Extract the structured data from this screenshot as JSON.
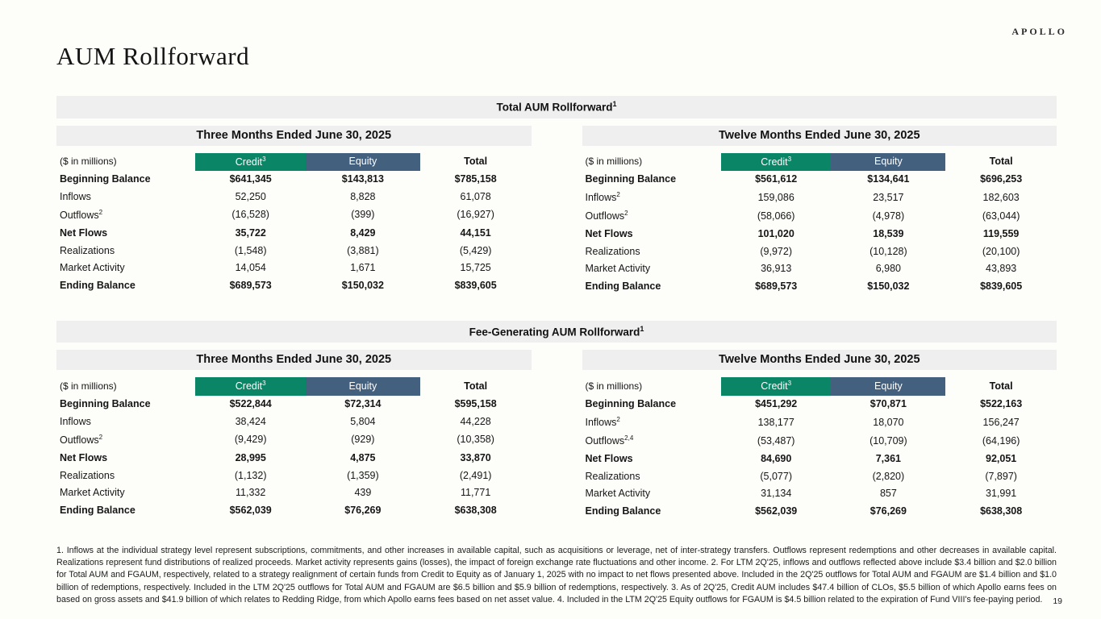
{
  "brand": "APOLLO",
  "page_title": "AUM Rollforward",
  "page_number": "19",
  "colors": {
    "credit_header": "#0a8666",
    "equity_header": "#44607f",
    "bar_background": "#efefef"
  },
  "sections": [
    {
      "title": "Total AUM Rollforward",
      "title_sup": "1",
      "tables": [
        {
          "period": "Three Months Ended June 30, 2025",
          "unit_label": "($ in millions)",
          "columns": [
            {
              "key": "credit",
              "label": "Credit",
              "sup": "3"
            },
            {
              "key": "equity",
              "label": "Equity",
              "sup": ""
            },
            {
              "key": "total",
              "label": "Total",
              "sup": ""
            }
          ],
          "rows": [
            {
              "label": "Beginning Balance",
              "sup": "",
              "bold": true,
              "values": [
                "$641,345",
                "$143,813",
                "$785,158"
              ]
            },
            {
              "label": "Inflows",
              "sup": "",
              "bold": false,
              "values": [
                "52,250",
                "8,828",
                "61,078"
              ]
            },
            {
              "label": "Outflows",
              "sup": "2",
              "bold": false,
              "values": [
                "(16,528)",
                "(399)",
                "(16,927)"
              ]
            },
            {
              "label": "Net Flows",
              "sup": "",
              "bold": true,
              "values": [
                "35,722",
                "8,429",
                "44,151"
              ]
            },
            {
              "label": "Realizations",
              "sup": "",
              "bold": false,
              "values": [
                "(1,548)",
                "(3,881)",
                "(5,429)"
              ]
            },
            {
              "label": "Market Activity",
              "sup": "",
              "bold": false,
              "values": [
                "14,054",
                "1,671",
                "15,725"
              ]
            },
            {
              "label": "Ending Balance",
              "sup": "",
              "bold": true,
              "values": [
                "$689,573",
                "$150,032",
                "$839,605"
              ]
            }
          ]
        },
        {
          "period": "Twelve Months Ended June 30, 2025",
          "unit_label": "($ in millions)",
          "columns": [
            {
              "key": "credit",
              "label": "Credit",
              "sup": "3"
            },
            {
              "key": "equity",
              "label": "Equity",
              "sup": ""
            },
            {
              "key": "total",
              "label": "Total",
              "sup": ""
            }
          ],
          "rows": [
            {
              "label": "Beginning Balance",
              "sup": "",
              "bold": true,
              "values": [
                "$561,612",
                "$134,641",
                "$696,253"
              ]
            },
            {
              "label": "Inflows",
              "sup": "2",
              "bold": false,
              "values": [
                "159,086",
                "23,517",
                "182,603"
              ]
            },
            {
              "label": "Outflows",
              "sup": "2",
              "bold": false,
              "values": [
                "(58,066)",
                "(4,978)",
                "(63,044)"
              ]
            },
            {
              "label": "Net Flows",
              "sup": "",
              "bold": true,
              "values": [
                "101,020",
                "18,539",
                "119,559"
              ]
            },
            {
              "label": "Realizations",
              "sup": "",
              "bold": false,
              "values": [
                "(9,972)",
                "(10,128)",
                "(20,100)"
              ]
            },
            {
              "label": "Market Activity",
              "sup": "",
              "bold": false,
              "values": [
                "36,913",
                "6,980",
                "43,893"
              ]
            },
            {
              "label": "Ending Balance",
              "sup": "",
              "bold": true,
              "values": [
                "$689,573",
                "$150,032",
                "$839,605"
              ]
            }
          ]
        }
      ]
    },
    {
      "title": "Fee-Generating AUM Rollforward",
      "title_sup": "1",
      "tables": [
        {
          "period": "Three Months Ended June 30, 2025",
          "unit_label": "($ in millions)",
          "columns": [
            {
              "key": "credit",
              "label": "Credit",
              "sup": "3"
            },
            {
              "key": "equity",
              "label": "Equity",
              "sup": ""
            },
            {
              "key": "total",
              "label": "Total",
              "sup": ""
            }
          ],
          "rows": [
            {
              "label": "Beginning Balance",
              "sup": "",
              "bold": true,
              "values": [
                "$522,844",
                "$72,314",
                "$595,158"
              ]
            },
            {
              "label": "Inflows",
              "sup": "",
              "bold": false,
              "values": [
                "38,424",
                "5,804",
                "44,228"
              ]
            },
            {
              "label": "Outflows",
              "sup": "2",
              "bold": false,
              "values": [
                "(9,429)",
                "(929)",
                "(10,358)"
              ]
            },
            {
              "label": "Net Flows",
              "sup": "",
              "bold": true,
              "values": [
                "28,995",
                "4,875",
                "33,870"
              ]
            },
            {
              "label": "Realizations",
              "sup": "",
              "bold": false,
              "values": [
                "(1,132)",
                "(1,359)",
                "(2,491)"
              ]
            },
            {
              "label": "Market Activity",
              "sup": "",
              "bold": false,
              "values": [
                "11,332",
                "439",
                "11,771"
              ]
            },
            {
              "label": "Ending Balance",
              "sup": "",
              "bold": true,
              "values": [
                "$562,039",
                "$76,269",
                "$638,308"
              ]
            }
          ]
        },
        {
          "period": "Twelve Months Ended June 30, 2025",
          "unit_label": "($ in millions)",
          "columns": [
            {
              "key": "credit",
              "label": "Credit",
              "sup": "3"
            },
            {
              "key": "equity",
              "label": "Equity",
              "sup": ""
            },
            {
              "key": "total",
              "label": "Total",
              "sup": ""
            }
          ],
          "rows": [
            {
              "label": "Beginning Balance",
              "sup": "",
              "bold": true,
              "values": [
                "$451,292",
                "$70,871",
                "$522,163"
              ]
            },
            {
              "label": "Inflows",
              "sup": "2",
              "bold": false,
              "values": [
                "138,177",
                "18,070",
                "156,247"
              ]
            },
            {
              "label": "Outflows",
              "sup": "2,4",
              "bold": false,
              "values": [
                "(53,487)",
                "(10,709)",
                "(64,196)"
              ]
            },
            {
              "label": "Net Flows",
              "sup": "",
              "bold": true,
              "values": [
                "84,690",
                "7,361",
                "92,051"
              ]
            },
            {
              "label": "Realizations",
              "sup": "",
              "bold": false,
              "values": [
                "(5,077)",
                "(2,820)",
                "(7,897)"
              ]
            },
            {
              "label": "Market Activity",
              "sup": "",
              "bold": false,
              "values": [
                "31,134",
                "857",
                "31,991"
              ]
            },
            {
              "label": "Ending Balance",
              "sup": "",
              "bold": true,
              "values": [
                "$562,039",
                "$76,269",
                "$638,308"
              ]
            }
          ]
        }
      ]
    }
  ],
  "footnotes": "1. Inflows at the individual strategy level represent subscriptions, commitments, and other increases in available capital, such as acquisitions or leverage, net of inter-strategy transfers. Outflows represent redemptions and other decreases in available capital. Realizations represent fund distributions of realized proceeds. Market activity represents gains (losses), the impact of foreign exchange rate fluctuations and other income. 2. For LTM 2Q'25, inflows and outflows reflected above include $3.4 billion and $2.0 billion for Total AUM and FGAUM, respectively, related to a strategy realignment of certain funds from Credit to Equity as of January 1, 2025 with no impact to net flows presented above. Included in the 2Q'25 outflows for Total AUM and FGAUM are $1.4 billion and $1.0 billion of redemptions, respectively. Included in the LTM 2Q'25 outflows for Total AUM and FGAUM are $6.5 billion and $5.9 billion of redemptions, respectively. 3. As of 2Q'25, Credit AUM includes $47.4 billion of CLOs, $5.5 billion of which Apollo earns fees on based on gross assets and $41.9 billion of which relates to Redding Ridge, from which Apollo earns fees based on net asset value. 4. Included in the LTM 2Q'25 Equity outflows for FGAUM is $4.5 billion related to the expiration of Fund VIII's fee-paying period."
}
